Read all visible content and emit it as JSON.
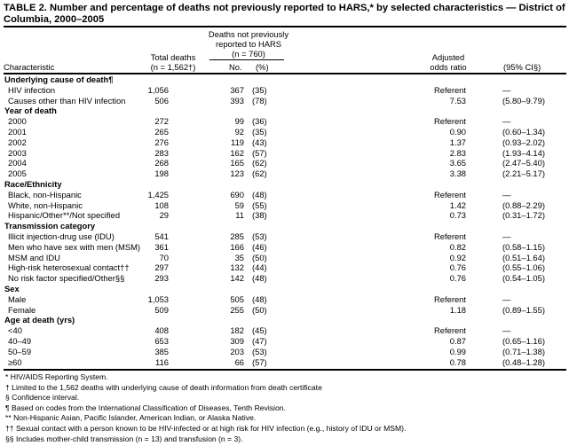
{
  "title": "TABLE 2. Number and percentage of deaths not previously reported to HARS,* by selected characteristics — District of Columbia, 2000–2005",
  "header": {
    "characteristic": "Characteristic",
    "total_deaths_1": "Total deaths",
    "total_deaths_2": "(n = 1,562†)",
    "not_reported_1": "Deaths not previously",
    "not_reported_2": "reported to HARS",
    "not_reported_3": "(n = 760)",
    "no": "No.",
    "pct": "(%)",
    "aor_1": "Adjusted",
    "aor_2": "odds ratio",
    "ci": "(95% CI§)"
  },
  "sections": [
    {
      "title": "Underlying cause of death¶",
      "rows": [
        [
          "HIV infection",
          "1,056",
          "367",
          "(35)",
          "Referent",
          "—"
        ],
        [
          "Causes other than HIV infection",
          "506",
          "393",
          "(78)",
          "7.53",
          "(5.80–9.79)"
        ]
      ]
    },
    {
      "title": "Year of death",
      "rows": [
        [
          "2000",
          "272",
          "99",
          "(36)",
          "Referent",
          "—"
        ],
        [
          "2001",
          "265",
          "92",
          "(35)",
          "0.90",
          "(0.60–1.34)"
        ],
        [
          "2002",
          "276",
          "119",
          "(43)",
          "1.37",
          "(0.93–2.02)"
        ],
        [
          "2003",
          "283",
          "162",
          "(57)",
          "2.83",
          "(1.93–4.14)"
        ],
        [
          "2004",
          "268",
          "165",
          "(62)",
          "3.65",
          "(2.47–5.40)"
        ],
        [
          "2005",
          "198",
          "123",
          "(62)",
          "3.38",
          "(2.21–5.17)"
        ]
      ]
    },
    {
      "title": "Race/Ethnicity",
      "rows": [
        [
          "Black, non-Hispanic",
          "1,425",
          "690",
          "(48)",
          "Referent",
          "—"
        ],
        [
          "White, non-Hispanic",
          "108",
          "59",
          "(55)",
          "1.42",
          "(0.88–2.29)"
        ],
        [
          "Hispanic/Other**/Not specified",
          "29",
          "11",
          "(38)",
          "0.73",
          "(0.31–1.72)"
        ]
      ]
    },
    {
      "title": "Transmission category",
      "rows": [
        [
          "Illicit injection-drug use (IDU)",
          "541",
          "285",
          "(53)",
          "Referent",
          "—"
        ],
        [
          "Men who have sex with men (MSM)",
          "361",
          "166",
          "(46)",
          "0.82",
          "(0.58–1.15)"
        ],
        [
          "MSM and IDU",
          "70",
          "35",
          "(50)",
          "0.92",
          "(0.51–1.64)"
        ],
        [
          "High-risk heterosexual contact††",
          "297",
          "132",
          "(44)",
          "0.76",
          "(0.55–1.06)"
        ],
        [
          "No risk factor specified/Other§§",
          "293",
          "142",
          "(48)",
          "0.76",
          "(0.54–1.05)"
        ]
      ]
    },
    {
      "title": "Sex",
      "rows": [
        [
          "Male",
          "1,053",
          "505",
          "(48)",
          "Referent",
          "—"
        ],
        [
          "Female",
          "509",
          "255",
          "(50)",
          "1.18",
          "(0.89–1.55)"
        ]
      ]
    },
    {
      "title": "Age at death (yrs)",
      "rows": [
        [
          "<40",
          "408",
          "182",
          "(45)",
          "Referent",
          "—"
        ],
        [
          "40–49",
          "653",
          "309",
          "(47)",
          "0.87",
          "(0.65–1.16)"
        ],
        [
          "50–59",
          "385",
          "203",
          "(53)",
          "0.99",
          "(0.71–1.38)"
        ],
        [
          "≥60",
          "116",
          "66",
          "(57)",
          "0.78",
          "(0.48–1.28)"
        ]
      ]
    }
  ],
  "footnotes": [
    "* HIV/AIDS Reporting System.",
    "† Limited to the 1,562 deaths with underlying cause of death information from death certificate",
    "§ Confidence interval.",
    "¶ Based on codes from the International Classification of Diseases, Tenth Revision.",
    "** Non-Hispanic Asian, Pacific Islander, American Indian, or Alaska Native.",
    "†† Sexual contact with a person known to be HIV-infected or at high risk for HIV infection (e.g., history of IDU or MSM).",
    "§§ Includes mother-child transmission (n = 13) and transfusion (n = 3)."
  ]
}
